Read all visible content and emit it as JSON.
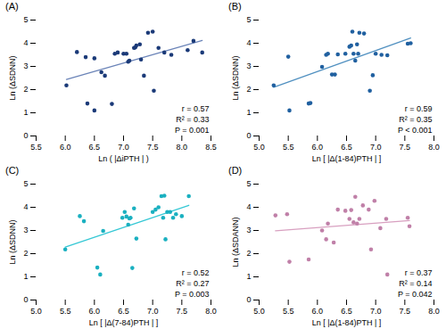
{
  "chart_data": [
    {
      "type": "scatter",
      "title": "(A)",
      "x_label": "Ln ( |ΔiPTH | )",
      "y_label": "Ln (ΔSDNN)",
      "x": [
        6.02,
        6.2,
        6.35,
        6.38,
        6.5,
        6.5,
        6.62,
        6.68,
        6.8,
        6.85,
        6.9,
        7.0,
        7.05,
        7.08,
        7.1,
        7.18,
        7.2,
        7.22,
        7.28,
        7.3,
        7.35,
        7.42,
        7.5,
        7.52,
        7.6,
        7.7,
        7.82,
        8.1,
        8.2,
        8.35
      ],
      "values": [
        2.18,
        3.62,
        3.4,
        1.4,
        3.35,
        1.1,
        2.75,
        2.6,
        1.38,
        3.55,
        3.6,
        3.55,
        3.55,
        3.2,
        3.25,
        3.8,
        3.82,
        3.9,
        3.95,
        3.3,
        2.6,
        4.45,
        4.5,
        1.95,
        3.8,
        3.6,
        3.5,
        3.7,
        4.1,
        3.6
      ],
      "color": "#1b3a78",
      "regression_line": {
        "type": "line",
        "x": [
          6.02,
          8.35
        ],
        "values": [
          2.435,
          4.121
        ],
        "color": "#6b84b8"
      },
      "annotation": "r = 0.57\nR² = 0.33\nP = 0.001",
      "xlim": [
        5.5,
        8.5
      ],
      "xticks": [
        5.5,
        {
          "value": 6,
          "label": "6.0"
        },
        6.5,
        {
          "value": 7,
          "label": "7.0"
        },
        7.5,
        {
          "value": 8,
          "label": "8.0"
        },
        8.5
      ],
      "ylim": [
        0,
        5
      ],
      "yticks": [
        0,
        1,
        2,
        3,
        4,
        5
      ],
      "grid": false
    },
    {
      "type": "scatter",
      "title": "(B)",
      "x_label": "Ln [ |Δ(1-84)PTH | ]",
      "y_label": "Ln (ΔSDNN)",
      "x": [
        5.25,
        5.5,
        5.52,
        5.85,
        5.88,
        6.08,
        6.15,
        6.18,
        6.25,
        6.3,
        6.35,
        6.48,
        6.55,
        6.58,
        6.6,
        6.62,
        6.65,
        6.68,
        6.7,
        6.72,
        6.8,
        6.9,
        6.95,
        7.0,
        7.1,
        7.2,
        7.55,
        7.6
      ],
      "values": [
        2.18,
        3.42,
        1.1,
        1.4,
        1.42,
        2.98,
        3.5,
        3.55,
        2.65,
        2.65,
        3.52,
        3.55,
        3.85,
        3.9,
        4.5,
        3.55,
        3.25,
        3.95,
        3.55,
        4.45,
        4.42,
        1.95,
        2.62,
        3.55,
        3.5,
        3.48,
        3.98,
        4.0
      ],
      "color": "#2060a0",
      "regression_line": {
        "type": "line",
        "x": [
          5.25,
          7.6
        ],
        "values": [
          2.098,
          4.226
        ],
        "color": "#5090c0"
      },
      "annotation": "r = 0.59\nR² = 0.35\nP < 0.001",
      "xlim": [
        5.0,
        8.0
      ],
      "xticks": [
        {
          "value": 5,
          "label": "5.0"
        },
        5.5,
        {
          "value": 6,
          "label": "6.0"
        },
        6.5,
        {
          "value": 7,
          "label": "7.0"
        },
        7.5,
        {
          "value": 8,
          "label": "8.0"
        }
      ],
      "ylim": [
        0,
        5
      ],
      "yticks": [
        0,
        1,
        2,
        3,
        4,
        5
      ],
      "grid": false
    },
    {
      "type": "scatter",
      "title": "(C)",
      "x_label": "Ln [ |Δ(7-84)PTH | ]",
      "y_label": "Ln (ΔSDNN)",
      "x": [
        5.5,
        5.75,
        5.82,
        6.05,
        6.1,
        6.15,
        6.48,
        6.52,
        6.55,
        6.58,
        6.6,
        6.62,
        6.65,
        6.68,
        6.72,
        7.0,
        7.05,
        7.1,
        7.15,
        7.18,
        7.2,
        7.22,
        7.25,
        7.3,
        7.35,
        7.4,
        7.5,
        7.62
      ],
      "values": [
        2.18,
        3.62,
        3.4,
        1.4,
        1.1,
        2.98,
        3.55,
        3.8,
        3.6,
        3.25,
        3.52,
        3.55,
        1.38,
        3.95,
        2.65,
        3.8,
        3.9,
        4.0,
        4.48,
        3.55,
        4.5,
        2.62,
        3.8,
        3.8,
        3.55,
        3.7,
        3.62,
        4.48
      ],
      "color": "#1ab0c0",
      "regression_line": {
        "type": "line",
        "x": [
          5.5,
          7.62
        ],
        "values": [
          2.282,
          4.085
        ],
        "color": "#35c8d5"
      },
      "annotation": "r = 0.52\nR² = 0.27\nP = 0.003",
      "xlim": [
        5.0,
        8.0
      ],
      "xticks": [
        {
          "value": 5,
          "label": "5.0"
        },
        5.5,
        {
          "value": 6,
          "label": "6.0"
        },
        6.5,
        {
          "value": 7,
          "label": "7.0"
        },
        7.5,
        {
          "value": 8,
          "label": "8.0"
        }
      ],
      "ylim": [
        0,
        5
      ],
      "yticks": [
        0,
        1,
        2,
        3,
        4,
        5
      ],
      "grid": false
    },
    {
      "type": "scatter",
      "title": "(D)",
      "x_label": "Ln [ |Δ(1-84)PTH | ]",
      "y_label": "Ln (ΔSDANN)",
      "x": [
        5.28,
        5.48,
        5.52,
        5.85,
        6.08,
        6.15,
        6.18,
        6.28,
        6.35,
        6.48,
        6.55,
        6.58,
        6.62,
        6.65,
        6.68,
        6.72,
        6.78,
        6.88,
        6.92,
        6.98,
        7.08,
        7.18,
        7.2,
        7.55,
        7.58
      ],
      "values": [
        3.65,
        3.7,
        1.65,
        1.75,
        3.0,
        2.62,
        3.3,
        2.48,
        3.9,
        3.85,
        3.5,
        3.88,
        3.35,
        4.45,
        3.3,
        3.5,
        4.08,
        3.9,
        2.18,
        4.28,
        3.1,
        3.5,
        1.1,
        3.55,
        3.18
      ],
      "color": "#c080a8",
      "regression_line": {
        "type": "line",
        "x": [
          5.28,
          7.58
        ],
        "values": [
          2.989,
          3.427
        ],
        "color": "#d8a0c0"
      },
      "annotation": "r = 0.37\nR² = 0.14\nP = 0.042",
      "xlim": [
        5.0,
        8.0
      ],
      "xticks": [
        {
          "value": 5,
          "label": "5.0"
        },
        5.5,
        {
          "value": 6,
          "label": "6.0"
        },
        6.5,
        {
          "value": 7,
          "label": "7.0"
        },
        7.5,
        {
          "value": 8,
          "label": "8.0"
        }
      ],
      "ylim": [
        0,
        5
      ],
      "yticks": [
        0,
        1,
        2,
        3,
        4,
        5
      ],
      "grid": false
    }
  ]
}
